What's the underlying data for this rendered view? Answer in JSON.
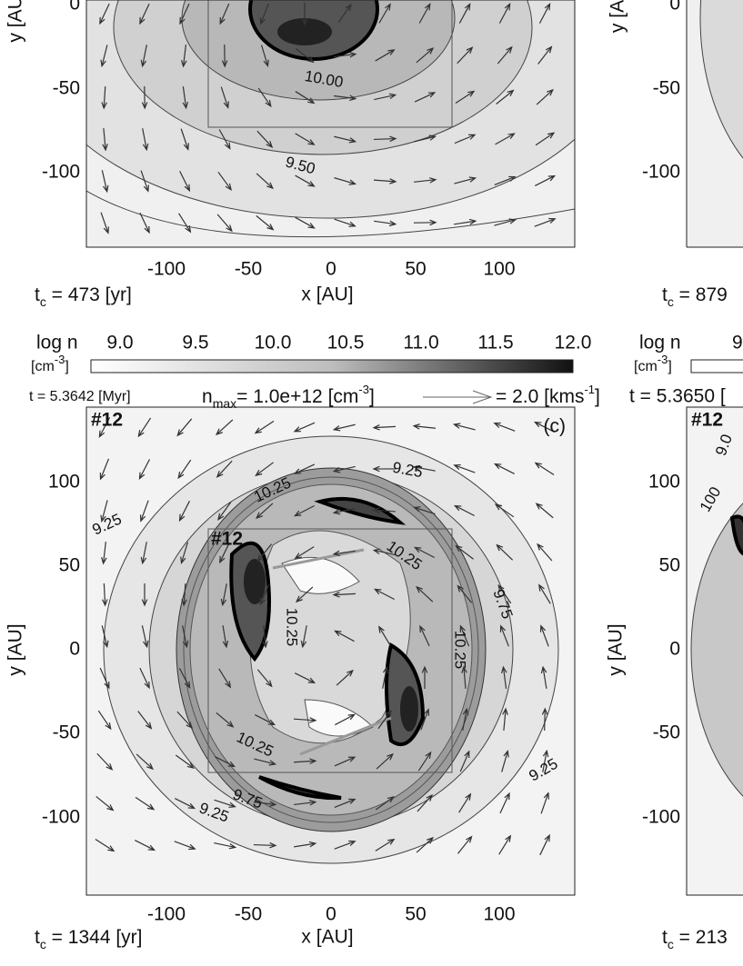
{
  "left_column": {
    "top_panel": {
      "ylabel": "y [AU]",
      "yticks": [
        "0",
        "-50",
        "-100"
      ],
      "xticks": [
        "-100",
        "-50",
        "0",
        "50",
        "100"
      ],
      "xlabel": "x [AU]",
      "time": {
        "t": "t",
        "sub": "c",
        "rest": " = 473 [yr]"
      },
      "contour_labels": [
        "10.00",
        "9.50"
      ]
    },
    "colorbar": {
      "label": "log n",
      "ticks": [
        "9.0",
        "9.5",
        "10.0",
        "10.5",
        "11.0",
        "11.5",
        "12.0"
      ],
      "unit": "[cm",
      "unit_exp": "-3",
      "unit_end": "]"
    },
    "info": {
      "time": "t = 5.3642 [Myr]",
      "nmax": "n",
      "nmax_sub": "max",
      "nmax_value": "= 1.0e+12 [cm",
      "nmax_exp": "-3",
      "nmax_end": "]",
      "arrow_value": "= 2.0 [kms",
      "arrow_exp": "-1",
      "arrow_end": "]"
    },
    "bottom_panel": {
      "panel_id": "#12",
      "inset_id": "#12",
      "letter": "(c)",
      "ylabel": "y [AU]",
      "yticks": [
        "100",
        "50",
        "0",
        "-50",
        "-100"
      ],
      "xticks": [
        "-100",
        "-50",
        "0",
        "50",
        "100"
      ],
      "xlabel": "x [AU]",
      "time": {
        "t": "t",
        "sub": "c",
        "rest": " = 1344 [yr]"
      },
      "contour_labels": [
        "10.25",
        "9.25",
        "9.25",
        "10.25",
        "9.75",
        "10.25",
        "10.25",
        "10.25",
        "9.25",
        "9.75",
        "9.25"
      ]
    }
  },
  "right_column": {
    "top_ylabel": "y [A",
    "top_yticks": [
      "0",
      "-50",
      "-100"
    ],
    "top_time": {
      "t": "t",
      "sub": "c",
      "rest": " = 879"
    },
    "colorbar_label": "log n",
    "colorbar_tick": "9",
    "unit": "[cm",
    "unit_exp": "-3",
    "unit_end": "]",
    "info_time": "t = 5.3650 [",
    "panel_id": "#12",
    "contour_labels": [
      "9.0",
      "100"
    ],
    "ylabel": "y [AU]",
    "yticks": [
      "100",
      "50",
      "0",
      "-50",
      "-100"
    ],
    "bottom_time": {
      "t": "t",
      "sub": "c",
      "rest": " = 213"
    }
  }
}
